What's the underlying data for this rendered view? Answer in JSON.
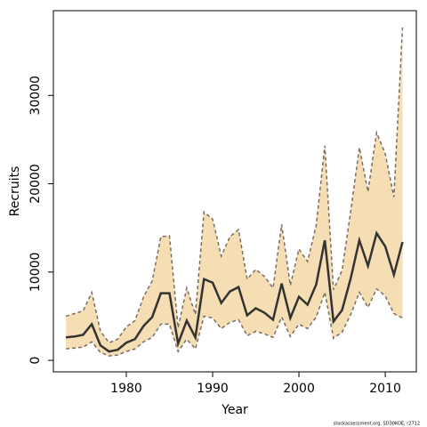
{
  "chart_data": {
    "type": "line",
    "x_label": "Year",
    "y_label": "Recruits",
    "footnote": "stockassessment.org, SD30KOE, r2712",
    "x": [
      1973,
      1974,
      1975,
      1976,
      1977,
      1978,
      1979,
      1980,
      1981,
      1982,
      1983,
      1984,
      1985,
      1986,
      1987,
      1988,
      1989,
      1990,
      1991,
      1992,
      1993,
      1994,
      1995,
      1996,
      1997,
      1998,
      1999,
      2000,
      2001,
      2002,
      2003,
      2004,
      2005,
      2006,
      2007,
      2008,
      2009,
      2010,
      2011,
      2012
    ],
    "values": [
      2600,
      2700,
      2900,
      4100,
      1700,
      1000,
      1200,
      2000,
      2400,
      3900,
      4900,
      7600,
      7600,
      1900,
      4500,
      2600,
      9200,
      8800,
      6500,
      7800,
      8300,
      5100,
      5900,
      5400,
      4600,
      8700,
      4800,
      7200,
      6300,
      8600,
      13600,
      4400,
      5700,
      9300,
      13600,
      10700,
      14400,
      12900,
      9700,
      13400
    ],
    "color": "#333333",
    "upper": [
      5000,
      5300,
      5600,
      7700,
      3300,
      2000,
      2400,
      3800,
      4500,
      7200,
      9000,
      14000,
      14100,
      3700,
      8200,
      5200,
      16800,
      16000,
      11800,
      14000,
      14800,
      9200,
      10300,
      9500,
      8200,
      15400,
      8500,
      12600,
      11200,
      15300,
      24300,
      8000,
      10200,
      16900,
      24100,
      19100,
      25800,
      23400,
      18500,
      37700
    ],
    "lower": [
      1300,
      1400,
      1500,
      2100,
      900,
      500,
      600,
      1000,
      1300,
      2100,
      2600,
      4100,
      4100,
      1000,
      2400,
      1300,
      5000,
      4800,
      3600,
      4300,
      4600,
      2800,
      3300,
      3000,
      2600,
      4900,
      2700,
      4100,
      3600,
      4900,
      7700,
      2500,
      3200,
      5200,
      7700,
      6000,
      8100,
      7300,
      5300,
      4800
    ],
    "band_color": "#f5deb3",
    "bound_color": "#7a6e62",
    "xlim": [
      1971.55,
      2013.6
    ],
    "xticks": [
      1980,
      1990,
      2000,
      2010
    ],
    "ylim": [
      -1300,
      39600
    ],
    "yticks": [
      0,
      10000,
      20000,
      30000
    ]
  }
}
